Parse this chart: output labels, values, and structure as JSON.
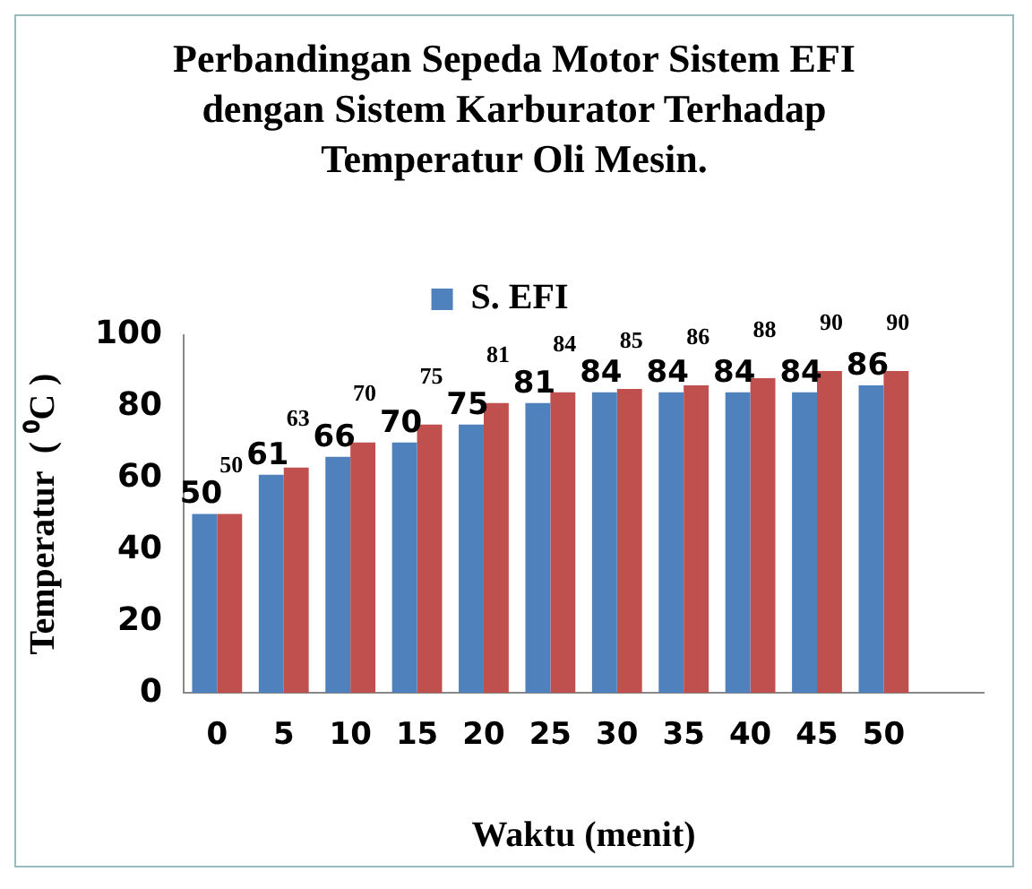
{
  "chart_data": {
    "type": "bar",
    "title": "Perbandingan Sepeda Motor Sistem EFI dengan Sistem Karburator Terhadap Temperatur Oli Mesin.",
    "xlabel": "Waktu (menit)",
    "ylabel": "Temperatur  ( ⁰C )",
    "categories": [
      "0",
      "5",
      "10",
      "15",
      "20",
      "25",
      "30",
      "35",
      "40",
      "45",
      "50",
      null
    ],
    "series": [
      {
        "name": "S. EFI",
        "color": "#4f81bd",
        "values": [
          50,
          61,
          66,
          70,
          75,
          81,
          84,
          84,
          84,
          84,
          86,
          null
        ]
      },
      {
        "color": "#c0504d",
        "values": [
          50,
          63,
          70,
          75,
          81,
          84,
          85,
          86,
          88,
          90,
          90,
          null
        ]
      }
    ],
    "ylim": [
      0,
      100
    ],
    "yticks": [
      0,
      20,
      40,
      60,
      80,
      100
    ],
    "grid": false,
    "legend": "top",
    "data_labels": true
  }
}
